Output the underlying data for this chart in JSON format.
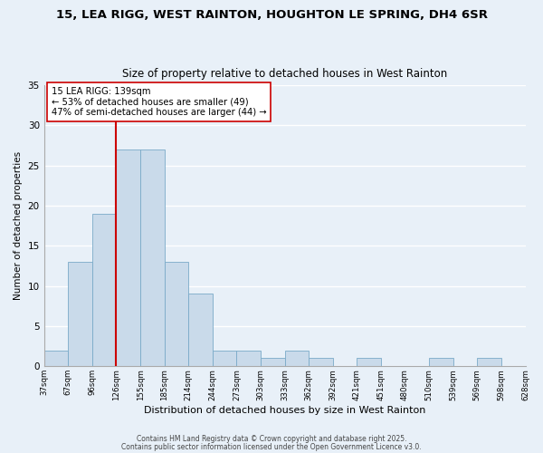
{
  "title": "15, LEA RIGG, WEST RAINTON, HOUGHTON LE SPRING, DH4 6SR",
  "subtitle": "Size of property relative to detached houses in West Rainton",
  "xlabel": "Distribution of detached houses by size in West Rainton",
  "ylabel": "Number of detached properties",
  "bar_values": [
    2,
    13,
    19,
    27,
    27,
    13,
    9,
    2,
    2,
    1,
    2,
    1,
    0,
    1,
    0,
    0,
    1,
    0,
    1
  ],
  "bin_labels": [
    "37sqm",
    "67sqm",
    "96sqm",
    "126sqm",
    "155sqm",
    "185sqm",
    "214sqm",
    "244sqm",
    "273sqm",
    "303sqm",
    "333sqm",
    "362sqm",
    "392sqm",
    "421sqm",
    "451sqm",
    "480sqm",
    "510sqm",
    "539sqm",
    "569sqm",
    "598sqm",
    "628sqm"
  ],
  "bar_color": "#c9daea",
  "bar_edge_color": "#7aaac8",
  "background_color": "#e8f0f8",
  "grid_color": "#ffffff",
  "vline_color": "#cc0000",
  "annotation_title": "15 LEA RIGG: 139sqm",
  "annotation_line1": "← 53% of detached houses are smaller (49)",
  "annotation_line2": "47% of semi-detached houses are larger (44) →",
  "annotation_box_color": "#ffffff",
  "annotation_box_edge": "#cc0000",
  "ylim": [
    0,
    35
  ],
  "yticks": [
    0,
    5,
    10,
    15,
    20,
    25,
    30,
    35
  ],
  "footnote1": "Contains HM Land Registry data © Crown copyright and database right 2025.",
  "footnote2": "Contains public sector information licensed under the Open Government Licence v3.0."
}
